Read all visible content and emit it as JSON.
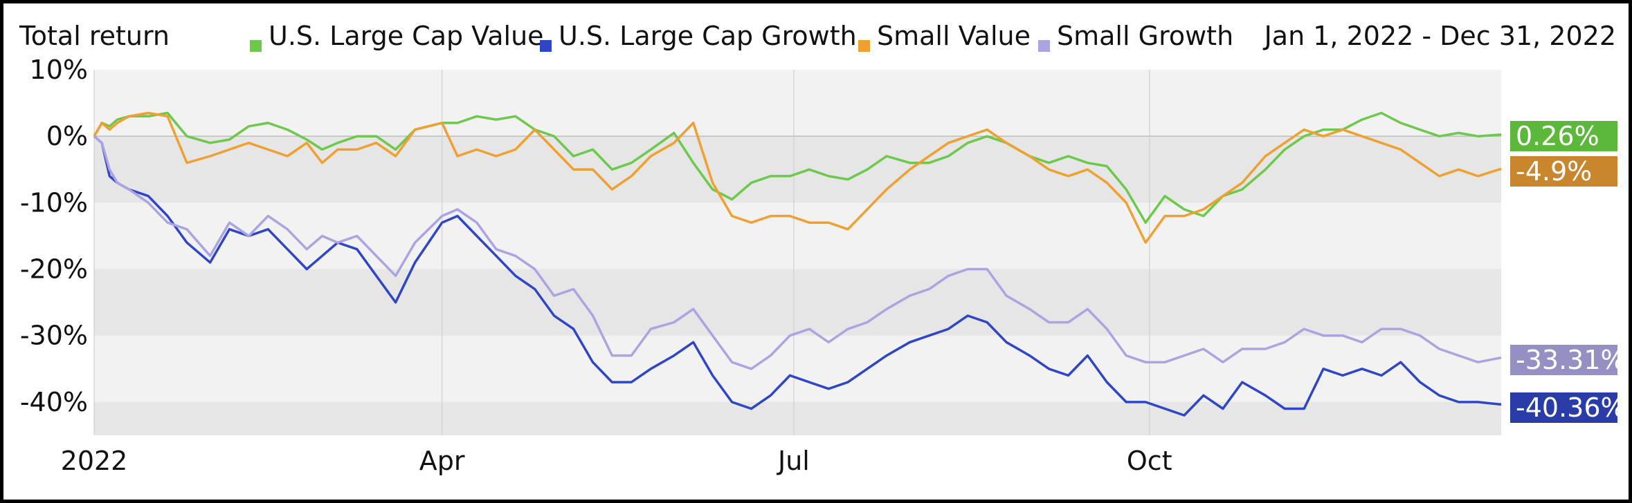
{
  "chart_data": {
    "type": "line",
    "title": "Total return",
    "date_range": "Jan 1, 2022 - Dec 31, 2022",
    "xlabel": "",
    "ylabel": "",
    "x_range": [
      "2022-01-01",
      "2022-12-31"
    ],
    "x_ticks": [
      {
        "date": "2022-01-01",
        "label": "2022"
      },
      {
        "date": "2022-04-01",
        "label": "Apr"
      },
      {
        "date": "2022-07-01",
        "label": "Jul"
      },
      {
        "date": "2022-10-01",
        "label": "Oct"
      }
    ],
    "ylim": [
      -45,
      10
    ],
    "y_ticks": [
      10,
      0,
      -10,
      -20,
      -30,
      -40
    ],
    "y_tick_labels": [
      "10%",
      "0%",
      "-10%",
      "-20%",
      "-30%",
      "-40%"
    ],
    "grid": true,
    "legend_position": "top",
    "series": [
      {
        "name": "U.S. Large Cap Value",
        "color": "#6cc94b",
        "end_label": "0.26%",
        "end_label_color": "#5cb83a",
        "dates": [
          "2022-01-01",
          "2022-01-03",
          "2022-01-05",
          "2022-01-07",
          "2022-01-10",
          "2022-01-15",
          "2022-01-20",
          "2022-01-25",
          "2022-01-31",
          "2022-02-05",
          "2022-02-10",
          "2022-02-15",
          "2022-02-20",
          "2022-02-25",
          "2022-03-01",
          "2022-03-05",
          "2022-03-10",
          "2022-03-15",
          "2022-03-20",
          "2022-03-25",
          "2022-04-01",
          "2022-04-05",
          "2022-04-10",
          "2022-04-15",
          "2022-04-20",
          "2022-04-25",
          "2022-04-30",
          "2022-05-05",
          "2022-05-10",
          "2022-05-15",
          "2022-05-20",
          "2022-05-25",
          "2022-05-31",
          "2022-06-05",
          "2022-06-10",
          "2022-06-15",
          "2022-06-20",
          "2022-06-25",
          "2022-06-30",
          "2022-07-05",
          "2022-07-10",
          "2022-07-15",
          "2022-07-20",
          "2022-07-25",
          "2022-07-31",
          "2022-08-05",
          "2022-08-10",
          "2022-08-15",
          "2022-08-20",
          "2022-08-25",
          "2022-08-31",
          "2022-09-05",
          "2022-09-10",
          "2022-09-15",
          "2022-09-20",
          "2022-09-25",
          "2022-09-30",
          "2022-10-05",
          "2022-10-10",
          "2022-10-15",
          "2022-10-20",
          "2022-10-25",
          "2022-10-31",
          "2022-11-05",
          "2022-11-10",
          "2022-11-15",
          "2022-11-20",
          "2022-11-25",
          "2022-11-30",
          "2022-12-05",
          "2022-12-10",
          "2022-12-15",
          "2022-12-20",
          "2022-12-25",
          "2022-12-31"
        ],
        "values": [
          0,
          2,
          1.5,
          2.5,
          3,
          3,
          3.5,
          0,
          -1,
          -0.5,
          1.5,
          2,
          1,
          -0.5,
          -2,
          -1,
          0,
          0,
          -2,
          1,
          2,
          2,
          3,
          2.5,
          3,
          1,
          0,
          -3,
          -2,
          -5,
          -4,
          -2,
          0.5,
          -4,
          -8,
          -9.5,
          -7,
          -6,
          -6,
          -5,
          -6,
          -6.5,
          -5,
          -3,
          -4,
          -4,
          -3,
          -1,
          0,
          -1,
          -3,
          -4,
          -3,
          -4,
          -4.5,
          -8,
          -13,
          -9,
          -11,
          -12,
          -9,
          -8,
          -5,
          -2,
          0,
          1,
          1,
          2.5,
          3.5,
          2,
          1,
          0,
          0.5,
          0,
          0.26
        ]
      },
      {
        "name": "U.S. Large Cap Growth",
        "color": "#2f45c8",
        "end_label": "-40.36%",
        "end_label_color": "#2a3ca8",
        "dates": [
          "2022-01-01",
          "2022-01-03",
          "2022-01-05",
          "2022-01-07",
          "2022-01-10",
          "2022-01-15",
          "2022-01-20",
          "2022-01-25",
          "2022-01-31",
          "2022-02-05",
          "2022-02-10",
          "2022-02-15",
          "2022-02-20",
          "2022-02-25",
          "2022-03-01",
          "2022-03-05",
          "2022-03-10",
          "2022-03-15",
          "2022-03-20",
          "2022-03-25",
          "2022-04-01",
          "2022-04-05",
          "2022-04-10",
          "2022-04-15",
          "2022-04-20",
          "2022-04-25",
          "2022-04-30",
          "2022-05-05",
          "2022-05-10",
          "2022-05-15",
          "2022-05-20",
          "2022-05-25",
          "2022-05-31",
          "2022-06-05",
          "2022-06-10",
          "2022-06-15",
          "2022-06-20",
          "2022-06-25",
          "2022-06-30",
          "2022-07-05",
          "2022-07-10",
          "2022-07-15",
          "2022-07-20",
          "2022-07-25",
          "2022-07-31",
          "2022-08-05",
          "2022-08-10",
          "2022-08-15",
          "2022-08-20",
          "2022-08-25",
          "2022-08-31",
          "2022-09-05",
          "2022-09-10",
          "2022-09-15",
          "2022-09-20",
          "2022-09-25",
          "2022-09-30",
          "2022-10-05",
          "2022-10-10",
          "2022-10-15",
          "2022-10-20",
          "2022-10-25",
          "2022-10-31",
          "2022-11-05",
          "2022-11-10",
          "2022-11-15",
          "2022-11-20",
          "2022-11-25",
          "2022-11-30",
          "2022-12-05",
          "2022-12-10",
          "2022-12-15",
          "2022-12-20",
          "2022-12-25",
          "2022-12-31"
        ],
        "values": [
          0,
          -1,
          -6,
          -7,
          -8,
          -9,
          -12,
          -16,
          -19,
          -14,
          -15,
          -14,
          -17,
          -20,
          -18,
          -16,
          -17,
          -21,
          -25,
          -19,
          -13,
          -12,
          -15,
          -18,
          -21,
          -23,
          -27,
          -29,
          -34,
          -37,
          -37,
          -35,
          -33,
          -31,
          -36,
          -40,
          -41,
          -39,
          -36,
          -37,
          -38,
          -37,
          -35,
          -33,
          -31,
          -30,
          -29,
          -27,
          -28,
          -31,
          -33,
          -35,
          -36,
          -33,
          -37,
          -40,
          -40,
          -41,
          -42,
          -39,
          -41,
          -37,
          -39,
          -41,
          -41,
          -35,
          -36,
          -35,
          -36,
          -34,
          -37,
          -39,
          -40,
          -40,
          -40.36
        ]
      },
      {
        "name": "Small Value",
        "color": "#f0a030",
        "end_label": "-4.9%",
        "end_label_color": "#c9862d",
        "dates": [
          "2022-01-01",
          "2022-01-03",
          "2022-01-05",
          "2022-01-07",
          "2022-01-10",
          "2022-01-15",
          "2022-01-20",
          "2022-01-25",
          "2022-01-31",
          "2022-02-05",
          "2022-02-10",
          "2022-02-15",
          "2022-02-20",
          "2022-02-25",
          "2022-03-01",
          "2022-03-05",
          "2022-03-10",
          "2022-03-15",
          "2022-03-20",
          "2022-03-25",
          "2022-04-01",
          "2022-04-05",
          "2022-04-10",
          "2022-04-15",
          "2022-04-20",
          "2022-04-25",
          "2022-04-30",
          "2022-05-05",
          "2022-05-10",
          "2022-05-15",
          "2022-05-20",
          "2022-05-25",
          "2022-05-31",
          "2022-06-05",
          "2022-06-10",
          "2022-06-15",
          "2022-06-20",
          "2022-06-25",
          "2022-06-30",
          "2022-07-05",
          "2022-07-10",
          "2022-07-15",
          "2022-07-20",
          "2022-07-25",
          "2022-07-31",
          "2022-08-05",
          "2022-08-10",
          "2022-08-15",
          "2022-08-20",
          "2022-08-25",
          "2022-08-31",
          "2022-09-05",
          "2022-09-10",
          "2022-09-15",
          "2022-09-20",
          "2022-09-25",
          "2022-09-30",
          "2022-10-05",
          "2022-10-10",
          "2022-10-15",
          "2022-10-20",
          "2022-10-25",
          "2022-10-31",
          "2022-11-05",
          "2022-11-10",
          "2022-11-15",
          "2022-11-20",
          "2022-11-25",
          "2022-11-30",
          "2022-12-05",
          "2022-12-10",
          "2022-12-15",
          "2022-12-20",
          "2022-12-25",
          "2022-12-31"
        ],
        "values": [
          0,
          2,
          1,
          2,
          3,
          3.5,
          3,
          -4,
          -3,
          -2,
          -1,
          -2,
          -3,
          -1,
          -4,
          -2,
          -2,
          -1,
          -3,
          1,
          2,
          -3,
          -2,
          -3,
          -2,
          1,
          -2,
          -5,
          -5,
          -8,
          -6,
          -3,
          -1,
          2,
          -7,
          -12,
          -13,
          -12,
          -12,
          -13,
          -13,
          -14,
          -11,
          -8,
          -5,
          -3,
          -1,
          0,
          1,
          -1,
          -3,
          -5,
          -6,
          -5,
          -7,
          -10,
          -16,
          -12,
          -12,
          -11,
          -9,
          -7,
          -3,
          -1,
          1,
          0,
          1,
          0,
          -1,
          -2,
          -4,
          -6,
          -5,
          -6,
          -4.9
        ]
      },
      {
        "name": "Small Growth",
        "color": "#aaa4e2",
        "end_label": "-33.31%",
        "end_label_color": "#9590c4",
        "dates": [
          "2022-01-01",
          "2022-01-03",
          "2022-01-05",
          "2022-01-07",
          "2022-01-10",
          "2022-01-15",
          "2022-01-20",
          "2022-01-25",
          "2022-01-31",
          "2022-02-05",
          "2022-02-10",
          "2022-02-15",
          "2022-02-20",
          "2022-02-25",
          "2022-03-01",
          "2022-03-05",
          "2022-03-10",
          "2022-03-15",
          "2022-03-20",
          "2022-03-25",
          "2022-04-01",
          "2022-04-05",
          "2022-04-10",
          "2022-04-15",
          "2022-04-20",
          "2022-04-25",
          "2022-04-30",
          "2022-05-05",
          "2022-05-10",
          "2022-05-15",
          "2022-05-20",
          "2022-05-25",
          "2022-05-31",
          "2022-06-05",
          "2022-06-10",
          "2022-06-15",
          "2022-06-20",
          "2022-06-25",
          "2022-06-30",
          "2022-07-05",
          "2022-07-10",
          "2022-07-15",
          "2022-07-20",
          "2022-07-25",
          "2022-07-31",
          "2022-08-05",
          "2022-08-10",
          "2022-08-15",
          "2022-08-20",
          "2022-08-25",
          "2022-08-31",
          "2022-09-05",
          "2022-09-10",
          "2022-09-15",
          "2022-09-20",
          "2022-09-25",
          "2022-09-30",
          "2022-10-05",
          "2022-10-10",
          "2022-10-15",
          "2022-10-20",
          "2022-10-25",
          "2022-10-31",
          "2022-11-05",
          "2022-11-10",
          "2022-11-15",
          "2022-11-20",
          "2022-11-25",
          "2022-11-30",
          "2022-12-05",
          "2022-12-10",
          "2022-12-15",
          "2022-12-20",
          "2022-12-25",
          "2022-12-31"
        ],
        "values": [
          0,
          -1,
          -5,
          -7,
          -8,
          -10,
          -13,
          -14,
          -18,
          -13,
          -15,
          -12,
          -14,
          -17,
          -15,
          -16,
          -15,
          -18,
          -21,
          -16,
          -12,
          -11,
          -13,
          -17,
          -18,
          -20,
          -24,
          -23,
          -27,
          -33,
          -33,
          -29,
          -28,
          -26,
          -30,
          -34,
          -35,
          -33,
          -30,
          -29,
          -31,
          -29,
          -28,
          -26,
          -24,
          -23,
          -21,
          -20,
          -20,
          -24,
          -26,
          -28,
          -28,
          -26,
          -29,
          -33,
          -34,
          -34,
          -33,
          -32,
          -34,
          -32,
          -32,
          -31,
          -29,
          -30,
          -30,
          -31,
          -29,
          -29,
          -30,
          -32,
          -33,
          -34,
          -33.31
        ]
      }
    ]
  }
}
